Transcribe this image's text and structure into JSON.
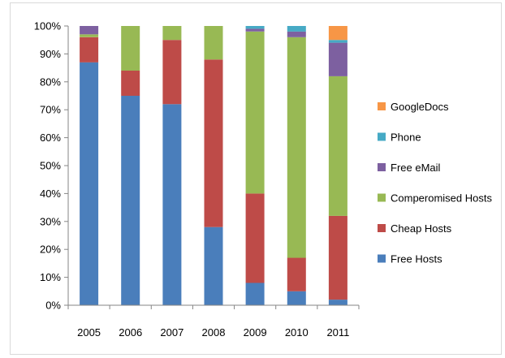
{
  "chart_data": {
    "type": "bar",
    "stacked": true,
    "percent": true,
    "categories": [
      "2005",
      "2006",
      "2007",
      "2008",
      "2009",
      "2010",
      "2011"
    ],
    "series": [
      {
        "name": "Free Hosts",
        "color": "#4a7ebb",
        "values": [
          87,
          75,
          72,
          28,
          8,
          5,
          2
        ]
      },
      {
        "name": "Cheap Hosts",
        "color": "#be4b48",
        "values": [
          9,
          9,
          23,
          60,
          32,
          12,
          30
        ]
      },
      {
        "name": "Comperomised Hosts",
        "color": "#98b954",
        "values": [
          1,
          16,
          5,
          12,
          58,
          79,
          50
        ]
      },
      {
        "name": "Free eMail",
        "color": "#7d60a0",
        "values": [
          3,
          0,
          0,
          0,
          1,
          2,
          12
        ]
      },
      {
        "name": "Phone",
        "color": "#46aac5",
        "values": [
          0,
          0,
          0,
          0,
          1,
          2,
          1
        ]
      },
      {
        "name": "GoogleDocs",
        "color": "#f79646",
        "values": [
          0,
          0,
          0,
          0,
          0,
          0,
          5
        ]
      }
    ],
    "yticks": [
      "0%",
      "10%",
      "20%",
      "30%",
      "40%",
      "50%",
      "60%",
      "70%",
      "80%",
      "90%",
      "100%"
    ],
    "ylim": [
      0,
      100
    ],
    "legend_position": "right",
    "grid": false,
    "title": "",
    "xlabel": "",
    "ylabel": ""
  }
}
